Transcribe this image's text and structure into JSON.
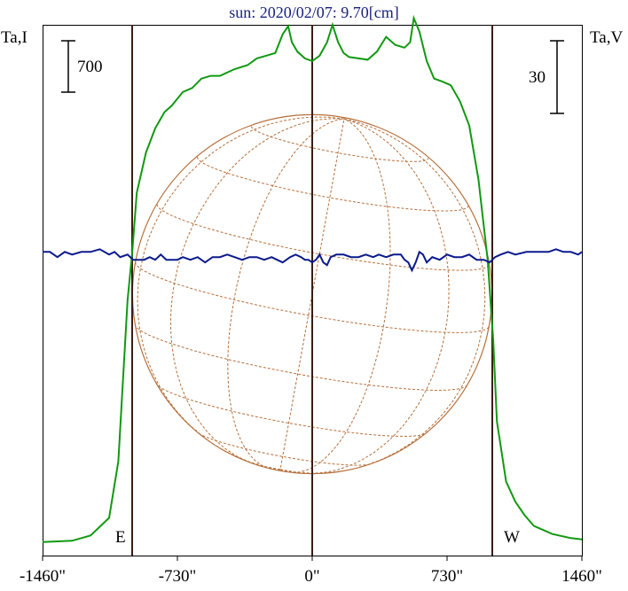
{
  "chart_data": {
    "type": "line",
    "title": "sun: 2020/02/07: 9.70[cm]",
    "left_axis_label": "Ta,I",
    "right_axis_label": "Ta,V",
    "left_scale_bar": "700",
    "right_scale_bar": "30",
    "xlim": [
      -1460,
      1460
    ],
    "x_ticks": [
      -1460,
      -730,
      0,
      730,
      1460
    ],
    "x_tick_labels": [
      "-1460\"",
      "-730\"",
      "0\"",
      "730\"",
      "1460\""
    ],
    "limb_labels": {
      "east": "E",
      "west": "W"
    },
    "limb_positions": [
      -973,
      973
    ],
    "center_line": 0,
    "solar_radius": 973,
    "colors": {
      "intensity": "#119911",
      "polarization": "#0b1a8c",
      "grid": "#b5703c",
      "markers": "#3a1d14",
      "title": "#1a237e"
    },
    "series": [
      {
        "key": "intensity",
        "axis": "left",
        "ylim": [
          -100,
          3850
        ],
        "x": [
          -1460,
          -1300,
          -1200,
          -1100,
          -1050,
          -1000,
          -975,
          -950,
          -900,
          -850,
          -800,
          -760,
          -730,
          -700,
          -650,
          -600,
          -550,
          -500,
          -420,
          -350,
          -300,
          -250,
          -200,
          -160,
          -130,
          -110,
          -80,
          -40,
          0,
          40,
          80,
          110,
          140,
          170,
          200,
          250,
          300,
          350,
          400,
          450,
          500,
          530,
          550,
          580,
          620,
          660,
          700,
          750,
          800,
          850,
          900,
          950,
          980,
          1000,
          1050,
          1100,
          1150,
          1200,
          1300,
          1400,
          1460
        ],
        "y": [
          0,
          10,
          50,
          180,
          600,
          1800,
          2150,
          2600,
          2900,
          3080,
          3200,
          3250,
          3300,
          3350,
          3380,
          3450,
          3470,
          3470,
          3520,
          3550,
          3600,
          3620,
          3640,
          3780,
          3840,
          3720,
          3650,
          3600,
          3580,
          3620,
          3720,
          3850,
          3720,
          3640,
          3610,
          3600,
          3590,
          3650,
          3760,
          3700,
          3680,
          3720,
          3900,
          3800,
          3580,
          3450,
          3430,
          3400,
          3280,
          3100,
          2700,
          2100,
          1500,
          900,
          450,
          300,
          200,
          120,
          60,
          30,
          20
        ]
      },
      {
        "key": "polarization",
        "axis": "right",
        "ylim": [
          -176,
          25
        ],
        "x": [
          -1460,
          -1420,
          -1380,
          -1340,
          -1300,
          -1250,
          -1200,
          -1150,
          -1100,
          -1070,
          -1040,
          -1000,
          -970,
          -940,
          -910,
          -880,
          -850,
          -820,
          -790,
          -760,
          -730,
          -700,
          -660,
          -620,
          -580,
          -540,
          -500,
          -460,
          -420,
          -380,
          -340,
          -300,
          -260,
          -220,
          -190,
          -160,
          -120,
          -90,
          -60,
          -40,
          -20,
          0,
          20,
          40,
          60,
          80,
          100,
          130,
          170,
          210,
          250,
          290,
          330,
          360,
          400,
          440,
          480,
          500,
          520,
          540,
          560,
          580,
          600,
          620,
          650,
          690,
          730,
          770,
          810,
          850,
          890,
          930,
          960,
          990,
          1020,
          1060,
          1100,
          1160,
          1220,
          1280,
          1320,
          1360,
          1400,
          1440,
          1460
        ],
        "y": [
          -61,
          -61,
          -63,
          -61,
          -62,
          -61,
          -61,
          -60,
          -62,
          -61,
          -63,
          -62,
          -64,
          -64,
          -64,
          -63,
          -64,
          -62,
          -64,
          -64,
          -64,
          -63,
          -64,
          -63,
          -65,
          -63,
          -63,
          -62,
          -63,
          -64,
          -63,
          -63,
          -64,
          -63,
          -64,
          -65,
          -63,
          -62,
          -63,
          -64,
          -64,
          -65,
          -64,
          -62,
          -65,
          -66,
          -63,
          -62,
          -62,
          -63,
          -63,
          -62,
          -63,
          -62,
          -63,
          -62,
          -62,
          -64,
          -65,
          -68,
          -65,
          -61,
          -62,
          -65,
          -63,
          -64,
          -62,
          -63,
          -63,
          -62,
          -64,
          -64,
          -65,
          -63,
          -62,
          -61,
          -62,
          -61,
          -61,
          -61,
          -60,
          -61,
          -61,
          -62,
          -61
        ]
      }
    ]
  }
}
